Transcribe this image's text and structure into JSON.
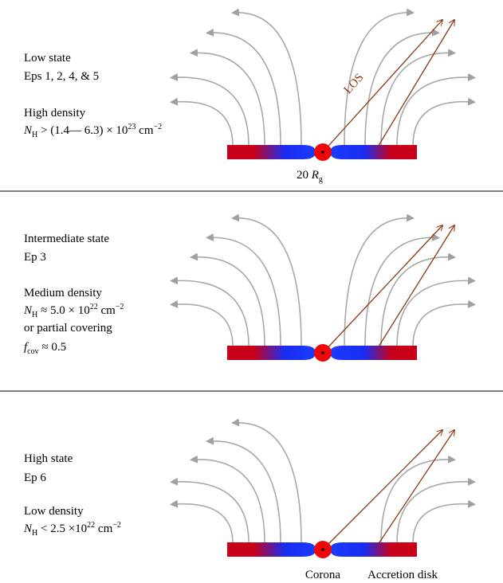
{
  "panels": [
    {
      "state": "Low state",
      "episodes": "Eps 1, 2, 4, & 5",
      "density": "High density",
      "column": {
        "symbol": "N",
        "sub": "H",
        "relation": " > (1.4— 6.3) × 10",
        "exponent": "23",
        "unit": " cm",
        "unit_exponent": "−2"
      },
      "los_label": "LOS",
      "scale": {
        "value": "20 ",
        "symbol": "R",
        "sub": "g"
      }
    },
    {
      "state": "Intermediate state",
      "episodes": "Ep 3",
      "density": "Medium density",
      "column": {
        "symbol": "N",
        "sub": "H",
        "relation": " ≈ 5.0 × 10",
        "exponent": "22",
        "unit": " cm",
        "unit_exponent": "−2"
      },
      "alternative": "or partial covering",
      "covering": {
        "symbol": "f",
        "sub": "cov",
        "relation": " ≈ 0.5"
      }
    },
    {
      "state": "High state",
      "episodes": "Ep 6",
      "density": "Low density",
      "column": {
        "symbol": "N",
        "sub": "H",
        "relation": " < 2.5 ×10",
        "exponent": "22",
        "unit": " cm",
        "unit_exponent": "−2"
      },
      "corona_label": "Corona",
      "disk_label": "Accretion disk"
    }
  ]
}
